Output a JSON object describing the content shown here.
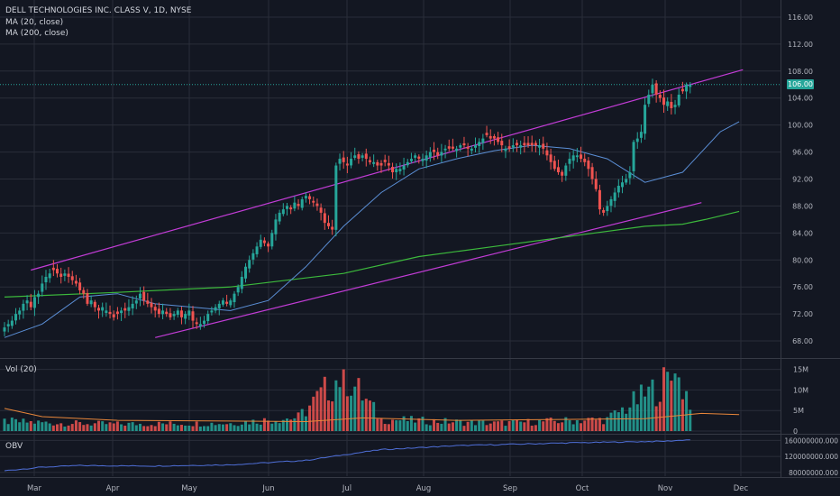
{
  "header": {
    "symbol_title": "DELL TECHNOLOGIES INC. CLASS V, 1D, NYSE",
    "ma20_label": "MA (20, close)",
    "ma200_label": "MA (200, close)"
  },
  "volume_panel": {
    "label": "Vol (20)"
  },
  "obv_panel": {
    "label": "OBV"
  },
  "last_price_tag": "106.00",
  "colors": {
    "background": "#131722",
    "grid": "#2a2e39",
    "up": "#26a69a",
    "down": "#ef5350",
    "ma20": "#5b8fd6",
    "ma200": "#3cb93c",
    "channel": "#c23cd6",
    "obv": "#4f6fd8",
    "vol_ma": "#e8863a"
  },
  "chart_data": [
    {
      "type": "candlestick",
      "title": "DELL TECHNOLOGIES INC. CLASS V, 1D, NYSE",
      "x_ticks": [
        "Mar",
        "Apr",
        "May",
        "Jun",
        "Jul",
        "Aug",
        "Sep",
        "Oct",
        "Nov",
        "Dec"
      ],
      "y_ticks": [
        "68.00",
        "72.00",
        "76.00",
        "80.00",
        "84.00",
        "88.00",
        "92.00",
        "96.00",
        "100.00",
        "104.00",
        "108.00",
        "112.00",
        "116.00"
      ],
      "ylim": [
        66,
        118
      ],
      "last_price": 106.0,
      "closes": [
        70,
        70.5,
        71,
        72,
        72.5,
        73.5,
        74,
        73,
        74.5,
        75,
        76.5,
        77.5,
        78,
        78.5,
        78,
        77.5,
        78,
        77.5,
        77,
        76.5,
        75.5,
        75,
        73.5,
        74,
        73,
        72.5,
        73,
        72.5,
        72,
        71.5,
        72,
        72.5,
        72.5,
        73,
        73.5,
        74,
        75,
        74,
        73.5,
        73,
        72.5,
        72,
        72.5,
        72,
        71.5,
        72,
        72.5,
        71.5,
        72,
        72.5,
        71,
        70.5,
        70.5,
        71,
        72,
        72.5,
        73,
        73.5,
        74,
        73.5,
        74,
        75,
        76,
        77.5,
        79,
        80,
        81,
        82,
        83,
        82.5,
        82,
        84,
        86,
        87,
        87.5,
        88,
        87.5,
        88.5,
        88,
        89,
        89.5,
        89,
        88.5,
        88,
        87,
        85.5,
        85,
        84.5,
        94,
        95,
        94.5,
        94,
        95,
        95.5,
        95,
        95.5,
        95,
        94.5,
        94.5,
        94,
        94,
        94.5,
        94,
        93,
        93.5,
        93.5,
        94,
        94.5,
        95,
        95.5,
        95,
        95,
        95.5,
        96,
        96,
        95.5,
        96,
        96.5,
        96.5,
        96.5,
        96.5,
        97,
        97,
        96.5,
        96.5,
        97,
        97.5,
        98,
        98.5,
        98,
        98,
        97.5,
        97,
        96.5,
        96.5,
        97,
        97,
        97,
        97,
        97,
        97,
        97,
        97,
        96.5,
        95.5,
        94.5,
        93.5,
        93,
        92.5,
        94,
        95,
        95.5,
        95.5,
        95,
        94.5,
        93.5,
        92,
        90.5,
        87.5,
        87,
        88,
        89,
        90,
        91,
        91.5,
        92,
        93,
        97.5,
        98,
        99,
        103,
        104.5,
        106,
        104.5,
        104,
        103,
        103.5,
        102.5,
        103,
        104.5,
        105,
        106,
        106
      ],
      "ma20": [
        [
          0,
          68.5
        ],
        [
          10,
          70.5
        ],
        [
          20,
          74.5
        ],
        [
          30,
          75
        ],
        [
          40,
          73.5
        ],
        [
          50,
          73
        ],
        [
          60,
          72.5
        ],
        [
          70,
          74
        ],
        [
          80,
          79
        ],
        [
          90,
          85
        ],
        [
          100,
          90
        ],
        [
          110,
          93.5
        ],
        [
          120,
          95
        ],
        [
          130,
          96.2
        ],
        [
          140,
          97
        ],
        [
          150,
          96.5
        ],
        [
          160,
          95
        ],
        [
          170,
          91.5
        ],
        [
          180,
          93
        ],
        [
          190,
          99
        ],
        [
          195,
          100.5
        ]
      ],
      "ma200": [
        [
          0,
          74.5
        ],
        [
          30,
          75.2
        ],
        [
          60,
          76
        ],
        [
          90,
          78
        ],
        [
          110,
          80.5
        ],
        [
          130,
          82
        ],
        [
          150,
          83.5
        ],
        [
          170,
          85
        ],
        [
          180,
          85.3
        ],
        [
          186,
          86
        ],
        [
          195,
          87.2
        ]
      ],
      "channel_upper": [
        [
          7,
          78.5
        ],
        [
          196,
          108.2
        ]
      ],
      "channel_lower": [
        [
          40,
          68.5
        ],
        [
          185,
          88.5
        ]
      ]
    },
    {
      "type": "bar",
      "title": "Vol (20)",
      "y_ticks": [
        "0",
        "5M",
        "10M",
        "15M"
      ],
      "ylim": [
        0,
        16
      ],
      "unit": "M",
      "volumes": [
        [
          0,
          2.5
        ],
        [
          15,
          2
        ],
        [
          30,
          1.8
        ],
        [
          60,
          2
        ],
        [
          78,
          3.5
        ],
        [
          90,
          15
        ],
        [
          100,
          3
        ],
        [
          130,
          2
        ],
        [
          160,
          3
        ],
        [
          178,
          14
        ],
        [
          185,
          4
        ],
        [
          195,
          3.5
        ]
      ],
      "vol_ma": [
        [
          0,
          5.5
        ],
        [
          10,
          3.5
        ],
        [
          30,
          2.6
        ],
        [
          80,
          2.3
        ],
        [
          95,
          3.2
        ],
        [
          120,
          2.6
        ],
        [
          170,
          3
        ],
        [
          185,
          4.3
        ],
        [
          195,
          4
        ]
      ]
    },
    {
      "type": "line",
      "title": "OBV",
      "y_ticks": [
        "80000000.000",
        "120000000.000",
        "160000000.000"
      ],
      "ylim": [
        75,
        170
      ],
      "unit": "M",
      "obv": [
        [
          0,
          84
        ],
        [
          10,
          93
        ],
        [
          20,
          97
        ],
        [
          40,
          96
        ],
        [
          60,
          99
        ],
        [
          80,
          110
        ],
        [
          90,
          124
        ],
        [
          100,
          137
        ],
        [
          120,
          147
        ],
        [
          150,
          154
        ],
        [
          175,
          158
        ],
        [
          182,
          162
        ],
        [
          186,
          148
        ],
        [
          190,
          152
        ],
        [
          195,
          151
        ]
      ]
    }
  ]
}
